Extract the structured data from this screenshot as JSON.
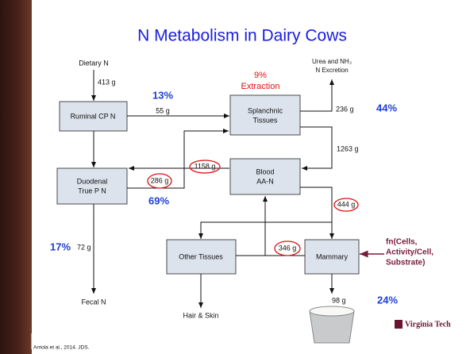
{
  "title": "N Metabolism in Dairy Cows",
  "nodes": [
    {
      "label": [
        "Ruminal CP N"
      ]
    },
    {
      "label": [
        "Splanchnic",
        "Tissues"
      ]
    },
    {
      "label": [
        "Duodenal",
        "True P N"
      ]
    },
    {
      "label": [
        "Blood",
        "AA-N"
      ]
    },
    {
      "label": [
        "Other Tissues"
      ]
    },
    {
      "label": [
        "Mammary"
      ]
    }
  ],
  "terminals": {
    "dietary": "Dietary N",
    "urea": [
      "Urea and NH₃",
      "N Excretion"
    ],
    "fecal": "Fecal N",
    "hair": "Hair & Skin"
  },
  "flows": {
    "dietary": "413 g",
    "ruminal_splanchnic": "55 g",
    "urea": "236 g",
    "splanchnic_blood": "1263 g",
    "blood_duodenal": "1158 g",
    "duodenal_splanchnic": "286 g",
    "blood_mammary": "444 g",
    "fecal": "72 g",
    "other_mammary": "346 g",
    "milk": "98 g"
  },
  "percentages": {
    "ruminal": "13%",
    "urea": "44%",
    "duodenal": "69%",
    "fecal": "17%",
    "milk": "24%"
  },
  "extraction": [
    "9%",
    "Extraction"
  ],
  "regulation": [
    "fn(Cells,",
    "Activity/Cell,",
    "Substrate)"
  ],
  "logo": "Virginia Tech",
  "citation": "Arriola et al., 2014. JDS."
}
